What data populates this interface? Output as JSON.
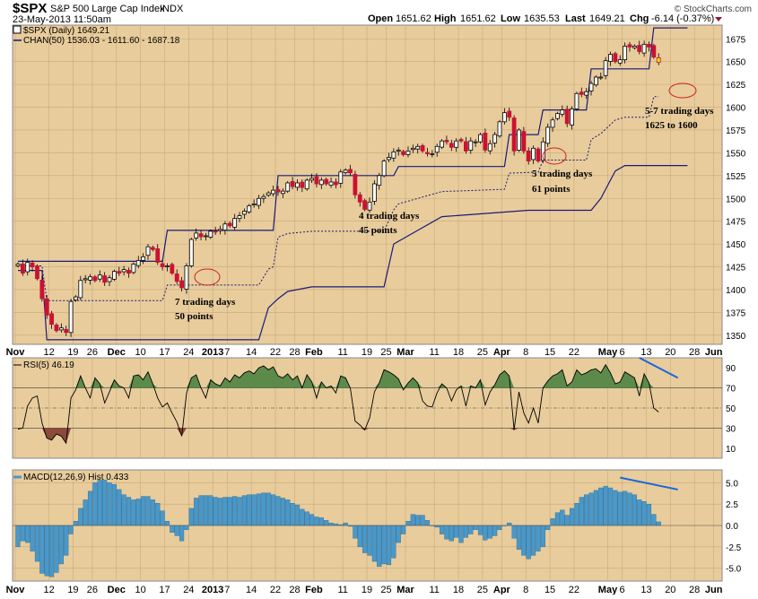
{
  "header": {
    "symbol": "$SPX",
    "name": "S&P 500 Large Cap Index",
    "exchange": "INDX",
    "datetime": "23-May-2013 11:50am",
    "open_label": "Open",
    "open": "1651.62",
    "high_label": "High",
    "high": "1651.62",
    "low_label": "Low",
    "low": "1635.53",
    "last_label": "Last",
    "last": "1649.21",
    "chg_label": "Chg",
    "chg": "-6.14 (-0.37%)",
    "watermark": "© StockCharts.com"
  },
  "colors": {
    "panel_bg": "#e8cc9c",
    "up_candle": "#ffffff",
    "down_candle": "#cc1133",
    "channel": "#1a1a7a",
    "rsi_fill_high": "#5c8a4a",
    "rsi_fill_low": "#8b4a3a",
    "macd_hist": "#4a98c8",
    "annotation_ellipse": "#cc2222",
    "trend_line": "#1a66dd"
  },
  "chart_data": {
    "type": "candlestick",
    "price_panel": {
      "legend": [
        {
          "label": "$SPX (Daily) 1649.21"
        },
        {
          "label": "CHAN(50) 1536.03 - 1611.60 - 1687.18"
        }
      ],
      "y_ticks": [
        "1675",
        "1650",
        "1625",
        "1600",
        "1575",
        "1550",
        "1525",
        "1500",
        "1475",
        "1450",
        "1425",
        "1400",
        "1375",
        "1350"
      ],
      "ylim": [
        1340,
        1690
      ],
      "x_ticks": [
        {
          "date": "2012-11-01",
          "label": "Nov"
        },
        {
          "date": "2012-11-12",
          "label": "12"
        },
        {
          "date": "2012-11-19",
          "label": "19"
        },
        {
          "date": "2012-11-26",
          "label": "26"
        },
        {
          "date": "2012-12-03",
          "label": "Dec"
        },
        {
          "date": "2012-12-10",
          "label": "10"
        },
        {
          "date": "2012-12-17",
          "label": "17"
        },
        {
          "date": "2012-12-24",
          "label": "24"
        },
        {
          "date": "2013-01-02",
          "label": "2013"
        },
        {
          "date": "2013-01-07",
          "label": "7"
        },
        {
          "date": "2013-01-14",
          "label": "14"
        },
        {
          "date": "2013-01-22",
          "label": "22"
        },
        {
          "date": "2013-01-28",
          "label": "28"
        },
        {
          "date": "2013-02-01",
          "label": "Feb"
        },
        {
          "date": "2013-02-11",
          "label": "11"
        },
        {
          "date": "2013-02-19",
          "label": "19"
        },
        {
          "date": "2013-02-25",
          "label": "25"
        },
        {
          "date": "2013-03-01",
          "label": "Mar"
        },
        {
          "date": "2013-03-11",
          "label": "11"
        },
        {
          "date": "2013-03-18",
          "label": "18"
        },
        {
          "date": "2013-03-25",
          "label": "25"
        },
        {
          "date": "2013-04-01",
          "label": "Apr"
        },
        {
          "date": "2013-04-08",
          "label": "8"
        },
        {
          "date": "2013-04-15",
          "label": "15"
        },
        {
          "date": "2013-04-22",
          "label": "22"
        },
        {
          "date": "2013-05-01",
          "label": "May"
        },
        {
          "date": "2013-05-06",
          "label": "6"
        },
        {
          "date": "2013-05-13",
          "label": "13"
        },
        {
          "date": "2013-05-20",
          "label": "20"
        },
        {
          "date": "2013-05-28",
          "label": "28"
        },
        {
          "date": "2013-06-03",
          "label": "Jun"
        }
      ],
      "closes": [
        1428,
        1418,
        1430,
        1425,
        1412,
        1390,
        1372,
        1362,
        1355,
        1358,
        1353,
        1387,
        1392,
        1410,
        1412,
        1414,
        1410,
        1416,
        1408,
        1413,
        1420,
        1418,
        1422,
        1418,
        1428,
        1432,
        1436,
        1447,
        1444,
        1430,
        1425,
        1426,
        1418,
        1409,
        1402,
        1426,
        1455,
        1462,
        1458,
        1459,
        1464,
        1463,
        1466,
        1472,
        1470,
        1478,
        1481,
        1486,
        1492,
        1494,
        1500,
        1502,
        1506,
        1509,
        1507,
        1508,
        1517,
        1513,
        1517,
        1512,
        1520,
        1522,
        1516,
        1520,
        1516,
        1518,
        1515,
        1529,
        1531,
        1528,
        1504,
        1496,
        1488,
        1496,
        1516,
        1525,
        1541,
        1545,
        1551,
        1553,
        1548,
        1552,
        1555,
        1557,
        1552,
        1549,
        1549,
        1557,
        1563,
        1562,
        1556,
        1563,
        1563,
        1552,
        1563,
        1562,
        1570,
        1553,
        1560,
        1570,
        1584,
        1594,
        1589,
        1552,
        1575,
        1552,
        1541,
        1555,
        1541,
        1562,
        1578,
        1586,
        1593,
        1597,
        1582,
        1598,
        1615,
        1614,
        1617,
        1626,
        1633,
        1633,
        1651,
        1658,
        1650,
        1652,
        1667,
        1666,
        1667,
        1661,
        1669,
        1666,
        1655,
        1649
      ],
      "channel_upper_steps": [
        [
          0,
          1431
        ],
        [
          30,
          1431
        ],
        [
          31,
          1465
        ],
        [
          53,
          1465
        ],
        [
          54,
          1525
        ],
        [
          78,
          1525
        ],
        [
          79,
          1535
        ],
        [
          101,
          1535
        ],
        [
          102,
          1570
        ],
        [
          108,
          1570
        ],
        [
          109,
          1597
        ],
        [
          118,
          1597
        ],
        [
          119,
          1642
        ],
        [
          131,
          1642
        ],
        [
          132,
          1687
        ],
        [
          139,
          1687
        ]
      ],
      "channel_lower_steps": [
        [
          0,
          1421
        ],
        [
          5,
          1421
        ],
        [
          6,
          1345
        ],
        [
          50,
          1345
        ],
        [
          52,
          1380
        ],
        [
          54,
          1390
        ],
        [
          56,
          1398
        ],
        [
          61,
          1403
        ],
        [
          76,
          1403
        ],
        [
          78,
          1450
        ],
        [
          83,
          1465
        ],
        [
          88,
          1480
        ],
        [
          96,
          1483
        ],
        [
          106,
          1487
        ],
        [
          119,
          1487
        ],
        [
          121,
          1500
        ],
        [
          122,
          1510
        ],
        [
          124,
          1530
        ],
        [
          126,
          1536
        ],
        [
          139,
          1536
        ]
      ],
      "annotations": [
        {
          "text": "7 trading days",
          "text2": "50 points"
        },
        {
          "text": "4 trading days",
          "text2": "45 points"
        },
        {
          "text": "5 trading days",
          "text2": "61 points"
        },
        {
          "text": "5-7 trading days",
          "text2": "1625 to 1600"
        }
      ]
    },
    "rsi_panel": {
      "legend": "RSI(5) 46.19",
      "y_ticks": [
        "90",
        "70",
        "50",
        "30",
        "10"
      ],
      "ylim": [
        0,
        100
      ],
      "levels": [
        70,
        50,
        30
      ],
      "values": [
        29,
        30,
        52,
        60,
        62,
        35,
        20,
        18,
        24,
        22,
        15,
        60,
        68,
        82,
        70,
        60,
        80,
        74,
        55,
        66,
        78,
        72,
        70,
        60,
        82,
        83,
        78,
        86,
        74,
        60,
        51,
        55,
        45,
        36,
        22,
        65,
        80,
        83,
        70,
        60,
        78,
        74,
        72,
        80,
        76,
        83,
        80,
        85,
        87,
        84,
        90,
        92,
        88,
        91,
        82,
        80,
        84,
        78,
        82,
        70,
        83,
        76,
        60,
        76,
        70,
        72,
        65,
        82,
        80,
        70,
        37,
        33,
        28,
        40,
        66,
        75,
        88,
        86,
        83,
        79,
        68,
        75,
        80,
        75,
        57,
        52,
        51,
        65,
        74,
        70,
        57,
        68,
        72,
        52,
        72,
        70,
        78,
        53,
        66,
        73,
        83,
        87,
        82,
        28,
        66,
        45,
        35,
        50,
        35,
        70,
        77,
        82,
        84,
        88,
        72,
        76,
        88,
        83,
        85,
        88,
        89,
        85,
        93,
        85,
        74,
        76,
        86,
        83,
        80,
        62,
        84,
        75,
        50,
        46
      ]
    },
    "macd_panel": {
      "legend": "MACD(12,26,9) Hist 0.433",
      "y_ticks": [
        "5.0",
        "2.5",
        "0.0",
        "-2.5",
        "-5.0"
      ],
      "ylim": [
        -6.5,
        6.5
      ],
      "values": [
        -2.5,
        -1.8,
        -2,
        -3,
        -4.2,
        -5.6,
        -5.9,
        -6,
        -5.5,
        -4.5,
        -3.5,
        -1,
        0.5,
        2,
        3,
        4,
        5,
        5.3,
        5.3,
        5,
        4.8,
        4.2,
        3.6,
        3.3,
        3,
        3.1,
        3.4,
        3.4,
        3,
        2.6,
        1.7,
        0.5,
        -0.8,
        -1.2,
        -1.8,
        -0.5,
        2,
        3.2,
        3.5,
        3.5,
        3.5,
        3.3,
        3.2,
        3.3,
        3.3,
        3.4,
        3.3,
        3.5,
        3.6,
        3.6,
        3.7,
        3.8,
        3.8,
        3.6,
        3.4,
        3.2,
        3,
        2.6,
        2.4,
        1.9,
        1.6,
        1.3,
        1,
        0.9,
        0.6,
        0.3,
        0.2,
        0.1,
        0.3,
        -0.1,
        -1.5,
        -2.5,
        -3.2,
        -3.5,
        -4.2,
        -4.8,
        -4.5,
        -4.6,
        -3.8,
        -2,
        -1,
        0.5,
        1.3,
        1.2,
        1.2,
        0.6,
        0,
        -0.2,
        -1,
        -1.6,
        -1.8,
        -1.4,
        -2,
        -1.4,
        -1,
        -0.5,
        -1.1,
        -1.7,
        -1.5,
        -1.2,
        -0.5,
        0,
        0.3,
        -1.5,
        -2.8,
        -3.5,
        -3.9,
        -3.5,
        -3,
        -2.5,
        -0.5,
        0.8,
        1.5,
        1.8,
        1.2,
        2,
        2.6,
        3.3,
        3.6,
        3.8,
        4.1,
        4.4,
        4.6,
        4.4,
        4.1,
        3.9,
        4,
        3.8,
        3.6,
        3,
        2.8,
        2.5,
        1.3,
        0.43
      ]
    }
  }
}
